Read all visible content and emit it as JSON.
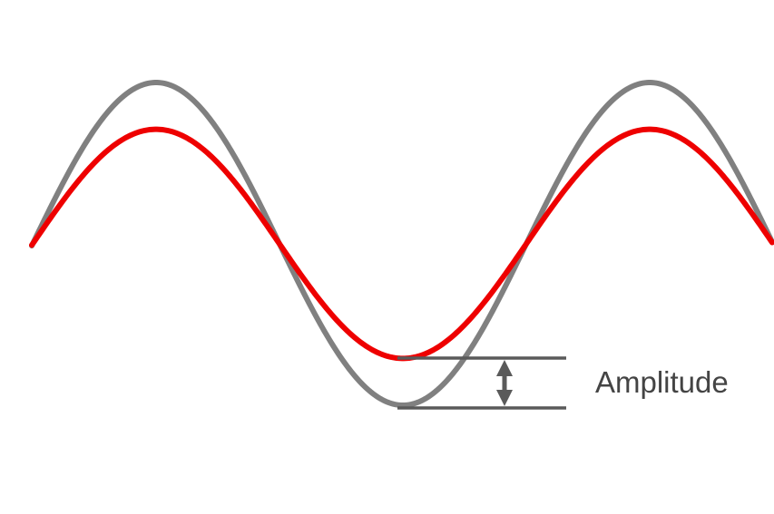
{
  "diagram": {
    "label": "Amplitude",
    "colors": {
      "background": "#ffffff",
      "wave_large": "#808080",
      "wave_small": "#ee0000",
      "annotation": "#5a5a5a",
      "label_text": "#444444"
    },
    "waves": [
      {
        "id": "wave-large",
        "relative_amplitude": 1.0
      },
      {
        "id": "wave-small",
        "relative_amplitude": 0.71
      }
    ],
    "icons": {
      "amplitude_marker": "double-headed-arrow-icon"
    }
  }
}
